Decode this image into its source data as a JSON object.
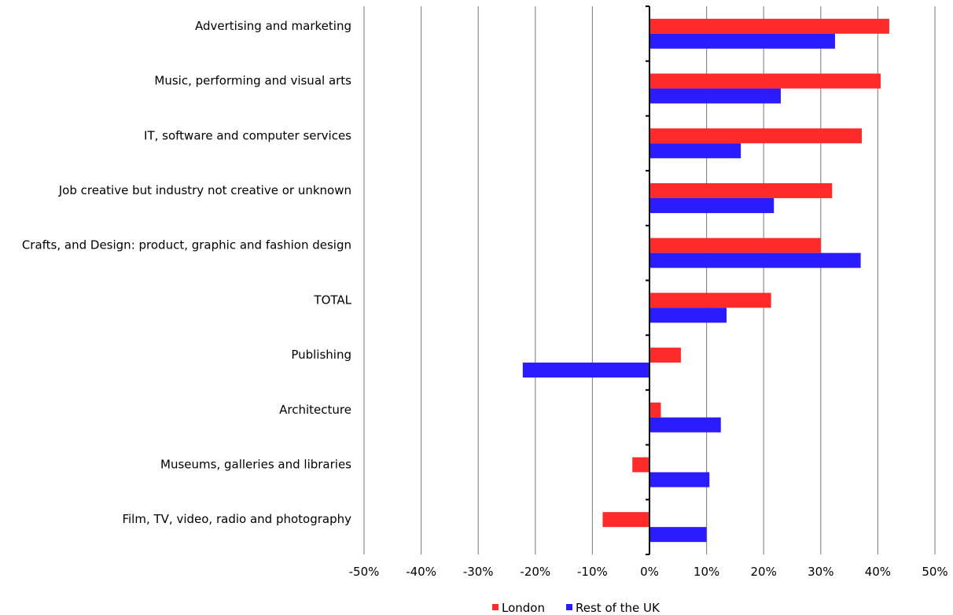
{
  "chart_data": {
    "type": "bar",
    "orientation": "horizontal",
    "categories": [
      "Advertising and marketing",
      "Music, performing and visual arts",
      "IT, software and computer services",
      "Job creative but industry not creative or unknown",
      "Crafts, and Design: product, graphic and fashion design",
      "TOTAL",
      "Publishing",
      "Architecture",
      "Museums, galleries and libraries",
      "Film, TV, video, radio and photography"
    ],
    "series": [
      {
        "name": "London",
        "color": "#ff2a2a",
        "values": [
          42,
          40.5,
          37.2,
          32,
          30,
          21.3,
          5.5,
          2,
          -3,
          -8.2
        ]
      },
      {
        "name": "Rest of the UK",
        "color": "#2a1cff",
        "values": [
          32.5,
          23,
          16,
          21.8,
          37,
          13.5,
          -22.2,
          12.5,
          10.5,
          10
        ]
      }
    ],
    "xlim": [
      -50,
      50
    ],
    "x_ticks": [
      "-50%",
      "-40%",
      "-30%",
      "-20%",
      "-10%",
      "0%",
      "10%",
      "20%",
      "30%",
      "40%",
      "50%"
    ],
    "grid": "vertical",
    "legend_position": "bottom-center"
  }
}
